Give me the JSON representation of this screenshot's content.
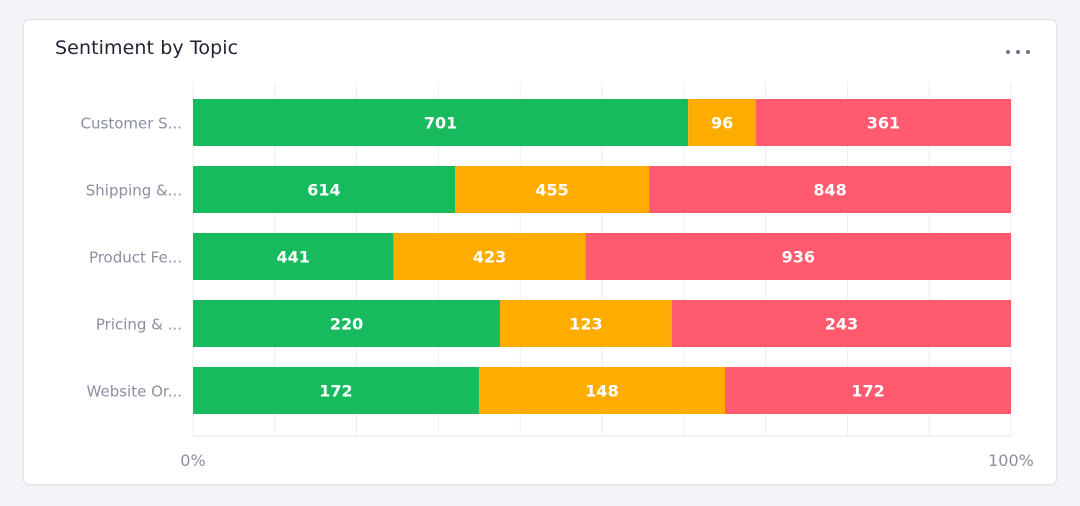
{
  "card": {
    "title": "Sentiment by Topic",
    "menu_icon": "more-horizontal-icon"
  },
  "chart_data": {
    "type": "bar",
    "orientation": "horizontal",
    "stacking": "percent",
    "categories": [
      "Customer S...",
      "Shipping &...",
      "Product Fe...",
      "Pricing & ...",
      "Website Or..."
    ],
    "series": [
      {
        "color": "#17bb5e",
        "values": [
          701,
          614,
          441,
          220,
          172
        ]
      },
      {
        "color": "#ffac00",
        "values": [
          96,
          455,
          423,
          123,
          148
        ]
      },
      {
        "color": "#ff5a6e",
        "values": [
          361,
          848,
          936,
          243,
          172
        ]
      }
    ],
    "x_ticks": [
      "0%",
      "100%"
    ],
    "xlim": [
      0,
      100
    ],
    "grid": true,
    "data_labels": true
  }
}
